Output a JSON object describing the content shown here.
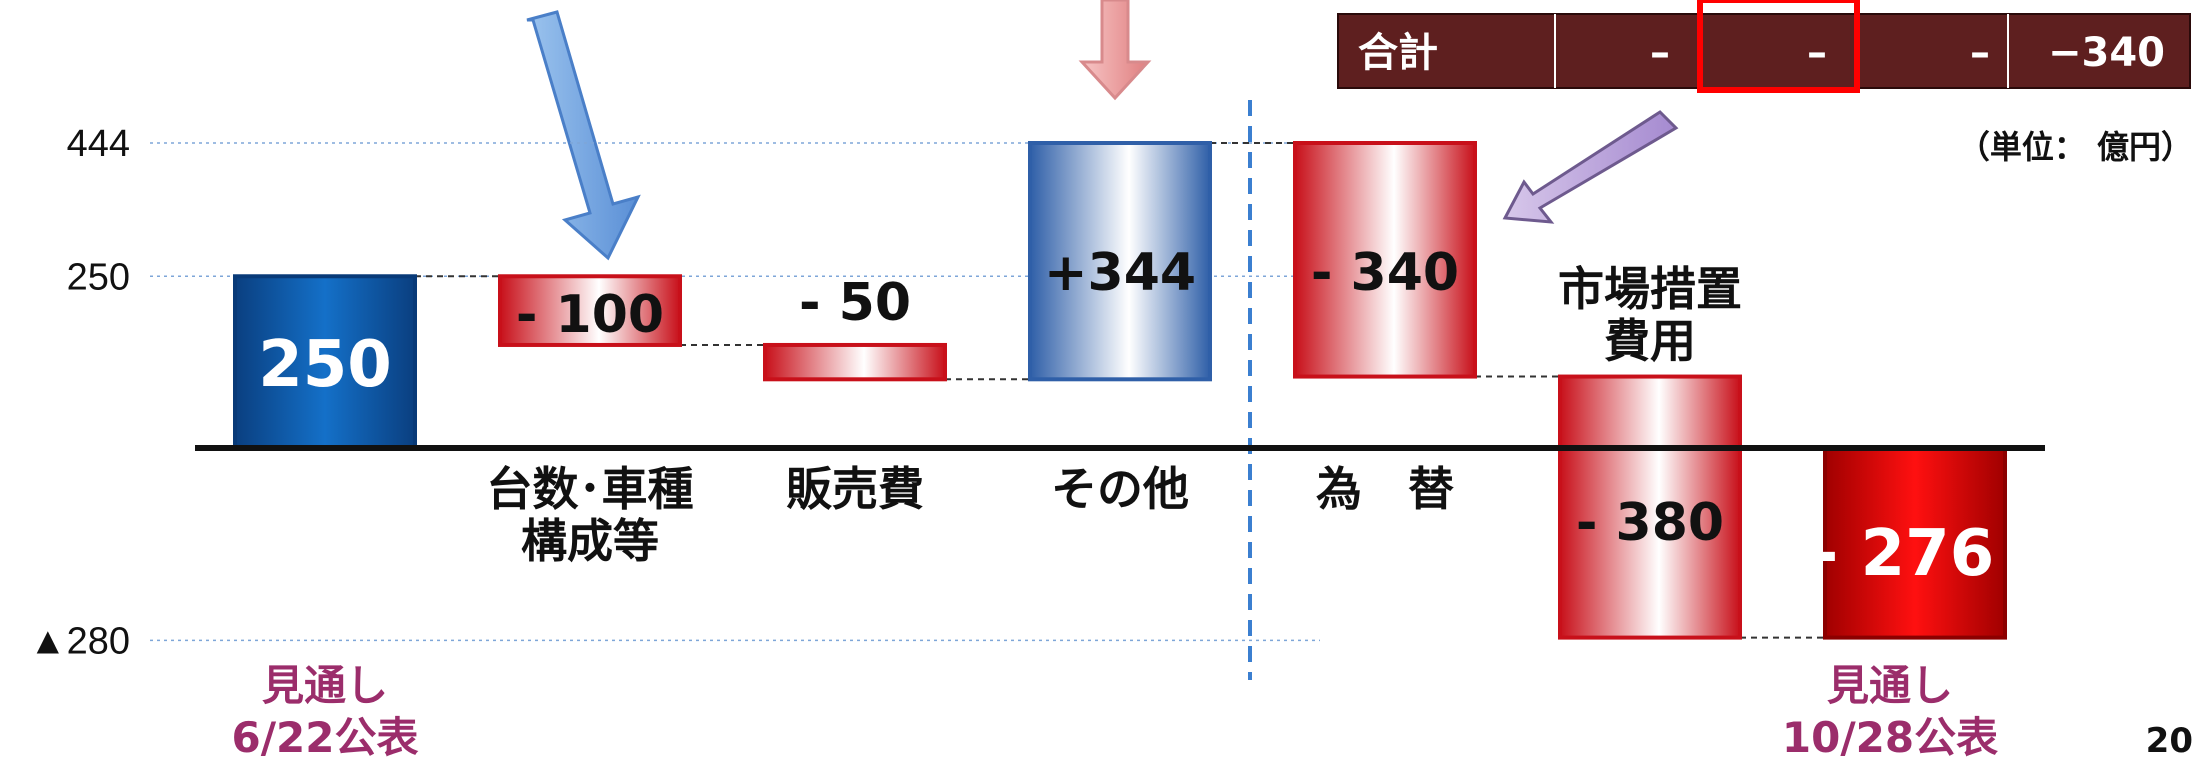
{
  "chart_data": {
    "type": "waterfall",
    "y_tick_labels": [
      "444",
      "250",
      "▲280"
    ],
    "y_ticks": [
      444,
      250,
      -280
    ],
    "start": {
      "value": 250,
      "label": "250",
      "caption": [
        "見通し",
        "6/22公表"
      ]
    },
    "steps": [
      {
        "category": [
          "台数･車種",
          "構成等"
        ],
        "delta": -100,
        "label": "- 100"
      },
      {
        "category": [
          "販売費"
        ],
        "delta": -50,
        "label": "- 50"
      },
      {
        "category": [
          "その他"
        ],
        "delta": 344,
        "label": "+344"
      },
      {
        "category": [
          "為　替"
        ],
        "delta": -340,
        "label": "- 340"
      },
      {
        "category": [
          "市場措置",
          "費用"
        ],
        "delta": -380,
        "label": "- 380"
      }
    ],
    "end": {
      "value": -276,
      "label": "- 276",
      "caption": [
        "見通し",
        "10/28公表"
      ]
    }
  },
  "summary_table": {
    "row_label": "合計",
    "cells": [
      "–",
      "–",
      "–",
      "−340"
    ]
  },
  "unit_note": "（単位： 億円）",
  "page_number": "20",
  "colors": {
    "start_bar": "#0b5aa6",
    "end_bar": "#e00000",
    "decrease": "#c8101a",
    "increase": "#3a6fb5",
    "caption": "#9b2d6b",
    "table_bg": "#5e1f1f",
    "highlight": "#ff0000"
  }
}
